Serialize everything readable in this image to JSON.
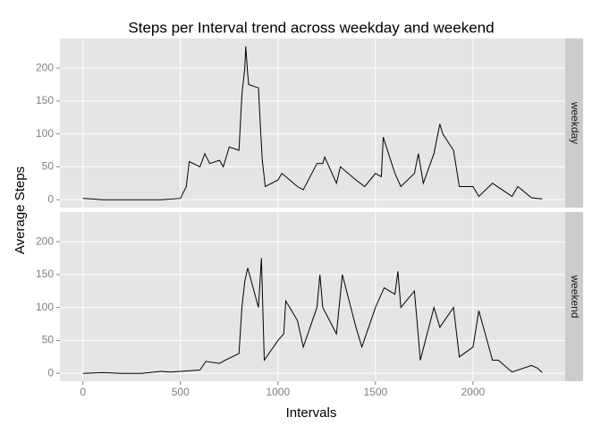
{
  "chart_data": {
    "type": "line",
    "title": "Steps per Interval trend across weekday and weekend",
    "x_label": "Intervals",
    "y_label": "Average Steps",
    "xlim": [
      -118,
      2473
    ],
    "xticks": [
      0,
      500,
      1000,
      1500,
      2000
    ],
    "ylim": [
      -12,
      245
    ],
    "yticks": [
      0,
      50,
      100,
      150,
      200
    ],
    "grid": true,
    "facet": true,
    "series": [
      {
        "name": "weekday",
        "color": "#000000",
        "x": [
          0,
          50,
          100,
          200,
          300,
          400,
          500,
          530,
          545,
          600,
          625,
          650,
          700,
          720,
          750,
          800,
          815,
          830,
          835,
          845,
          850,
          900,
          910,
          920,
          935,
          1000,
          1020,
          1100,
          1130,
          1200,
          1230,
          1240,
          1300,
          1320,
          1400,
          1445,
          1500,
          1530,
          1540,
          1600,
          1630,
          1700,
          1720,
          1745,
          1800,
          1830,
          1845,
          1900,
          1930,
          2000,
          2030,
          2100,
          2200,
          2230,
          2300,
          2355
        ],
        "values": [
          2,
          1,
          0,
          0,
          0,
          0,
          2,
          20,
          58,
          50,
          70,
          55,
          60,
          50,
          80,
          75,
          160,
          200,
          233,
          190,
          175,
          170,
          110,
          60,
          20,
          30,
          40,
          20,
          15,
          55,
          55,
          65,
          25,
          50,
          30,
          20,
          40,
          35,
          95,
          40,
          20,
          40,
          70,
          25,
          70,
          115,
          100,
          75,
          20,
          20,
          5,
          25,
          5,
          20,
          3,
          1
        ]
      },
      {
        "name": "weekend",
        "color": "#000000",
        "x": [
          0,
          100,
          200,
          300,
          400,
          450,
          500,
          600,
          630,
          700,
          730,
          800,
          815,
          830,
          845,
          900,
          915,
          930,
          1000,
          1030,
          1040,
          1100,
          1130,
          1200,
          1215,
          1230,
          1300,
          1330,
          1400,
          1430,
          1500,
          1545,
          1600,
          1615,
          1630,
          1700,
          1730,
          1800,
          1830,
          1900,
          1930,
          2000,
          2030,
          2100,
          2130,
          2200,
          2300,
          2330,
          2355
        ],
        "values": [
          0,
          1,
          0,
          0,
          3,
          2,
          3,
          5,
          18,
          15,
          20,
          30,
          100,
          140,
          160,
          100,
          175,
          20,
          50,
          60,
          110,
          80,
          40,
          100,
          150,
          100,
          60,
          150,
          70,
          40,
          100,
          130,
          120,
          155,
          100,
          125,
          20,
          100,
          70,
          100,
          25,
          40,
          95,
          20,
          20,
          2,
          12,
          8,
          1
        ]
      }
    ]
  }
}
